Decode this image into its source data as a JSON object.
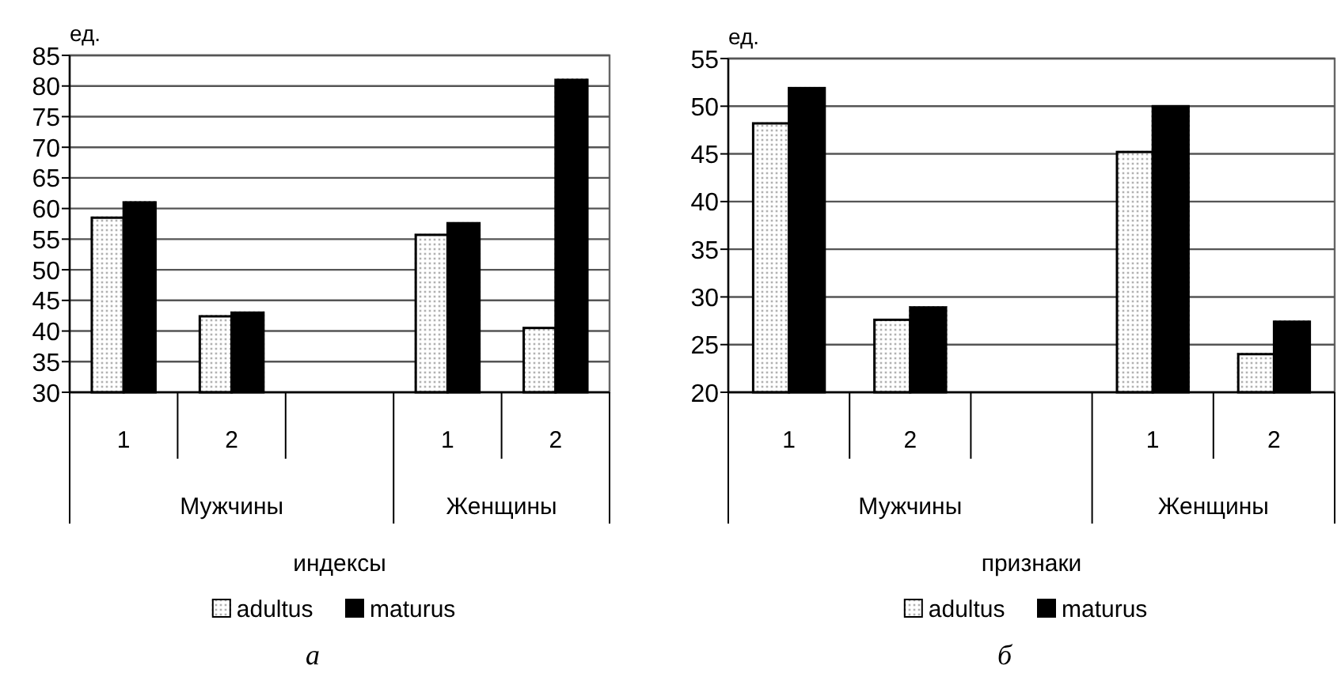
{
  "chart_data": [
    {
      "type": "bar",
      "ylabel": "ед.",
      "xlabel": "индексы",
      "categories": [
        "1",
        "2",
        null,
        "1",
        "2"
      ],
      "series": [
        {
          "name": "adultus",
          "color": "#ffffff",
          "values": [
            58.5,
            42.4,
            null,
            55.7,
            40.5
          ]
        },
        {
          "name": "maturus",
          "color": "#000000",
          "values": [
            61,
            43,
            null,
            57.6,
            81
          ]
        }
      ],
      "ylim": [
        30,
        85
      ],
      "yticks": [
        30,
        35,
        40,
        45,
        50,
        55,
        60,
        65,
        70,
        75,
        80,
        85
      ],
      "grid": "y",
      "legend": "bottom",
      "annotations": [
        "Мужчины",
        "Женщины",
        "а"
      ]
    },
    {
      "type": "bar",
      "ylabel": "ед.",
      "xlabel": "признаки",
      "categories": [
        "1",
        "2",
        null,
        "1",
        "2"
      ],
      "series": [
        {
          "name": "adultus",
          "color": "#ffffff",
          "values": [
            48.2,
            27.6,
            null,
            45.2,
            24
          ]
        },
        {
          "name": "maturus",
          "color": "#000000",
          "values": [
            51.9,
            28.9,
            null,
            50,
            27.4
          ]
        }
      ],
      "ylim": [
        20,
        55
      ],
      "yticks": [
        20,
        25,
        30,
        35,
        40,
        45,
        50,
        55
      ],
      "grid": "y",
      "legend": "bottom",
      "annotations": [
        "Мужчины",
        "Женщины",
        "б"
      ]
    }
  ]
}
